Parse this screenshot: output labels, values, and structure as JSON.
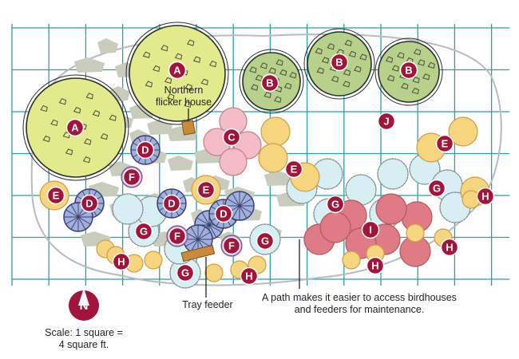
{
  "colors": {
    "grid": "#2f9fa6",
    "tree_a": "#e3ea8c",
    "tree_b": "#b5d18a",
    "shrub_c": "#f3bcc7",
    "shrub_d": "#9fb0de",
    "shrub_e": "#f7d57e",
    "shrub_f": "#c9a1d4",
    "plant_g": "#d7eef2",
    "plant_h": "#f7d57e",
    "shrub_i": "#e07a84",
    "marker": "#a3143b",
    "stepping_stone": "#c9ccbd",
    "feeder": "#c98a3a"
  },
  "plant_labels": {
    "a": "A",
    "b": "B",
    "c": "C",
    "d": "D",
    "e": "E",
    "f": "F",
    "g": "G",
    "h": "H",
    "i": "I",
    "j": "J"
  },
  "callouts": {
    "flicker_house_line1": "Northern",
    "flicker_house_line2": "flicker house",
    "tray_feeder": "Tray feeder",
    "path_line1": "A path makes it easier to access birdhouses",
    "path_line2": "and feeders for maintenance."
  },
  "compass": {
    "letter": "N",
    "icon": "north-arrow-icon"
  },
  "scale": {
    "line1": "Scale: 1 square =",
    "line2": "4 square ft."
  }
}
